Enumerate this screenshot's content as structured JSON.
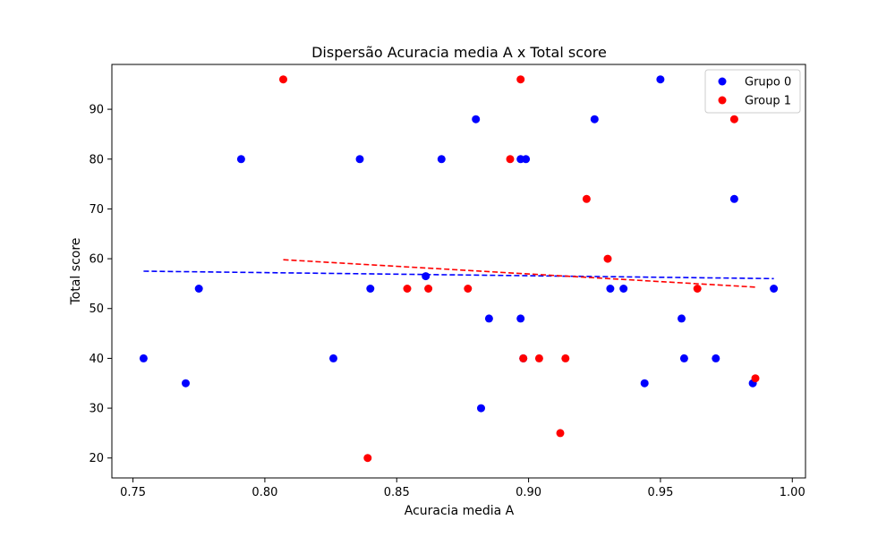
{
  "chart_data": {
    "type": "scatter",
    "title": "Dispersão Acuracia media A x Total score",
    "xlabel": "Acuracia media A",
    "ylabel": "Total score",
    "xlim": [
      0.742,
      1.005
    ],
    "ylim": [
      16,
      99
    ],
    "xticks": [
      0.75,
      0.8,
      0.85,
      0.9,
      0.95,
      1.0
    ],
    "xtick_labels": [
      "0.75",
      "0.80",
      "0.85",
      "0.90",
      "0.95",
      "1.00"
    ],
    "yticks": [
      20,
      30,
      40,
      50,
      60,
      70,
      80,
      90
    ],
    "ytick_labels": [
      "20",
      "30",
      "40",
      "50",
      "60",
      "70",
      "80",
      "90"
    ],
    "grid": false,
    "legend_position": "top-right",
    "series": [
      {
        "name": "Grupo 0",
        "color": "#0000ff",
        "points": [
          [
            0.754,
            40
          ],
          [
            0.77,
            35
          ],
          [
            0.775,
            54
          ],
          [
            0.791,
            80
          ],
          [
            0.826,
            40
          ],
          [
            0.836,
            80
          ],
          [
            0.84,
            54
          ],
          [
            0.861,
            56.5
          ],
          [
            0.867,
            80
          ],
          [
            0.88,
            88
          ],
          [
            0.882,
            30
          ],
          [
            0.885,
            48
          ],
          [
            0.897,
            48
          ],
          [
            0.897,
            80
          ],
          [
            0.898,
            40
          ],
          [
            0.899,
            80
          ],
          [
            0.925,
            88
          ],
          [
            0.931,
            54
          ],
          [
            0.936,
            54
          ],
          [
            0.944,
            35
          ],
          [
            0.95,
            96
          ],
          [
            0.958,
            48
          ],
          [
            0.959,
            40
          ],
          [
            0.971,
            40
          ],
          [
            0.978,
            72
          ],
          [
            0.985,
            35
          ],
          [
            0.993,
            54
          ]
        ],
        "trend": {
          "x": [
            0.754,
            0.993
          ],
          "y": [
            57.5,
            56.0
          ],
          "color": "#0000ff",
          "style": "dashed"
        }
      },
      {
        "name": "Group 1",
        "color": "#ff0000",
        "points": [
          [
            0.807,
            96
          ],
          [
            0.839,
            20
          ],
          [
            0.854,
            54
          ],
          [
            0.862,
            54
          ],
          [
            0.877,
            54
          ],
          [
            0.893,
            80
          ],
          [
            0.897,
            96
          ],
          [
            0.898,
            40
          ],
          [
            0.904,
            40
          ],
          [
            0.912,
            25
          ],
          [
            0.914,
            40
          ],
          [
            0.922,
            72
          ],
          [
            0.93,
            60
          ],
          [
            0.964,
            54
          ],
          [
            0.978,
            88
          ],
          [
            0.986,
            36
          ]
        ],
        "trend": {
          "x": [
            0.807,
            0.986
          ],
          "y": [
            59.8,
            54.3
          ],
          "color": "#ff0000",
          "style": "dashed"
        }
      }
    ]
  }
}
